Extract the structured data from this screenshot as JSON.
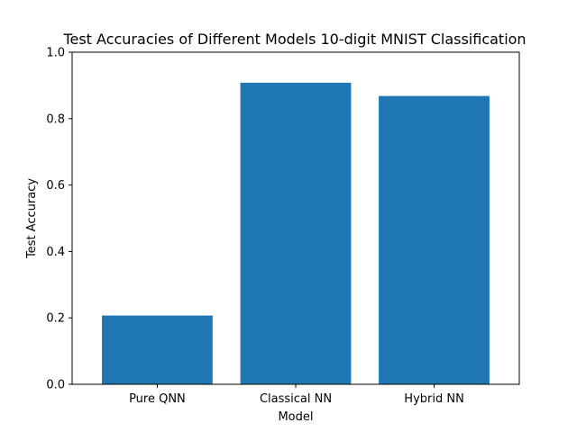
{
  "chart_data": {
    "type": "bar",
    "title": "Test Accuracies of Different Models 10-digit MNIST Classification",
    "xlabel": "Model",
    "ylabel": "Test Accuracy",
    "categories": [
      "Pure QNN",
      "Classical NN",
      "Hybrid NN"
    ],
    "values": [
      0.207,
      0.908,
      0.868
    ],
    "ylim": [
      0,
      1.0
    ],
    "yticks": [
      "0.0",
      "0.2",
      "0.4",
      "0.6",
      "0.8",
      "1.0"
    ],
    "bar_color": "#1f77b4",
    "grid": false,
    "legend": "none"
  }
}
